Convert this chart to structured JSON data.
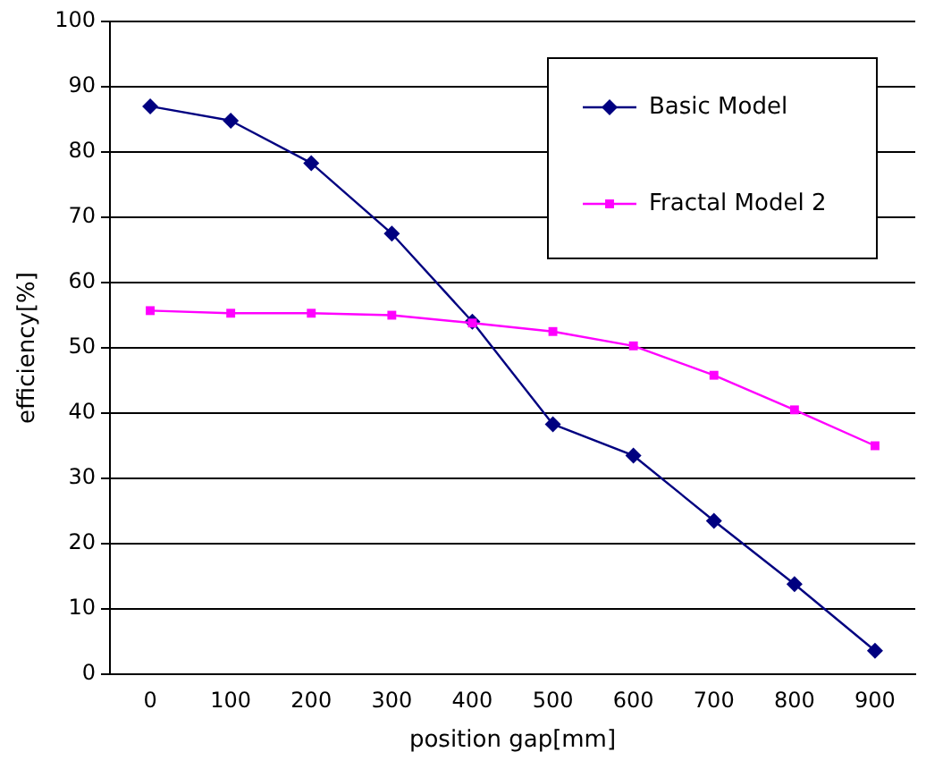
{
  "chart_data": {
    "type": "line",
    "xlabel": "position gap[mm]",
    "ylabel": "efficiency[%]",
    "categories": [
      "0",
      "100",
      "200",
      "300",
      "400",
      "500",
      "600",
      "700",
      "800",
      "900"
    ],
    "series": [
      {
        "name": "Basic Model",
        "color": "#000080",
        "marker": "diamond",
        "values": [
          87,
          84.8,
          78.3,
          67.5,
          54,
          38.3,
          33.5,
          23.5,
          13.8,
          3.6
        ]
      },
      {
        "name": "Fractal Model 2",
        "color": "#ff00ff",
        "marker": "square",
        "values": [
          55.7,
          55.3,
          55.3,
          55,
          53.8,
          52.5,
          50.3,
          45.8,
          40.5,
          35
        ]
      }
    ],
    "ylim": [
      0,
      100
    ],
    "yticks": [
      0,
      10,
      20,
      30,
      40,
      50,
      60,
      70,
      80,
      90,
      100
    ],
    "grid": "y",
    "legend": "top right",
    "line_style": "solid"
  }
}
